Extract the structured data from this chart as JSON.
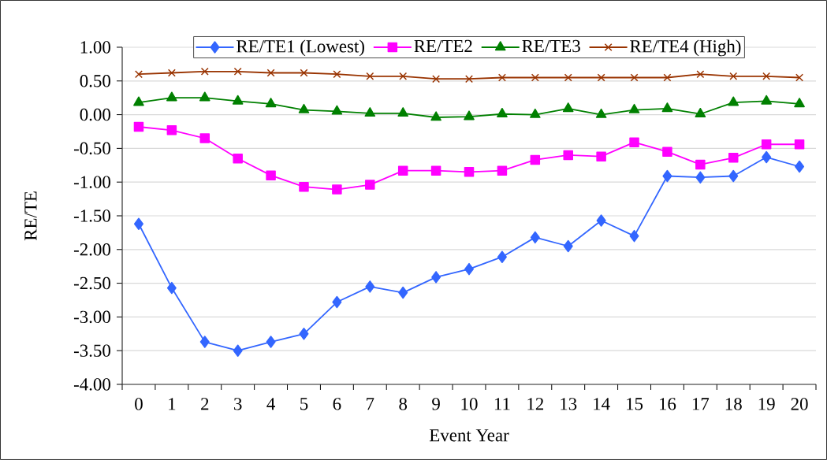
{
  "chart_data": {
    "type": "line",
    "xlabel": "Event Year",
    "ylabel": "RE/TE",
    "categories": [
      "0",
      "1",
      "2",
      "3",
      "4",
      "5",
      "6",
      "7",
      "8",
      "9",
      "10",
      "11",
      "12",
      "13",
      "14",
      "15",
      "16",
      "17",
      "18",
      "19",
      "20"
    ],
    "ylim": [
      -4.0,
      1.0
    ],
    "yticks": [
      {
        "value": 1.0,
        "label": "1.00"
      },
      {
        "value": 0.5,
        "label": "0.50"
      },
      {
        "value": 0.0,
        "label": "0.00"
      },
      {
        "value": -0.5,
        "label": "-0.50"
      },
      {
        "value": -1.0,
        "label": "-1.00"
      },
      {
        "value": -1.5,
        "label": "-1.50"
      },
      {
        "value": -2.0,
        "label": "-2.00"
      },
      {
        "value": -2.5,
        "label": "-2.50"
      },
      {
        "value": -3.0,
        "label": "-3.00"
      },
      {
        "value": -3.5,
        "label": "-3.50"
      },
      {
        "value": -4.0,
        "label": "-4.00"
      }
    ],
    "grid": "y",
    "legend": "top",
    "line_style": "solid",
    "series": [
      {
        "name": "RE/TE1 (Lowest)",
        "color": "#3366ff",
        "marker": "diamond",
        "values": [
          -1.62,
          -2.57,
          -3.37,
          -3.5,
          -3.37,
          -3.25,
          -2.78,
          -2.55,
          -2.64,
          -2.41,
          -2.29,
          -2.11,
          -1.82,
          -1.95,
          -1.57,
          -1.8,
          -0.91,
          -0.93,
          -0.91,
          -0.63,
          -0.77
        ]
      },
      {
        "name": "RE/TE2",
        "color": "#ff00ff",
        "marker": "square",
        "values": [
          -0.18,
          -0.23,
          -0.35,
          -0.65,
          -0.9,
          -1.07,
          -1.11,
          -1.04,
          -0.83,
          -0.83,
          -0.85,
          -0.83,
          -0.67,
          -0.6,
          -0.62,
          -0.41,
          -0.55,
          -0.74,
          -0.64,
          -0.44,
          -0.44
        ]
      },
      {
        "name": "RE/TE3",
        "color": "#008000",
        "marker": "triangle",
        "values": [
          0.18,
          0.25,
          0.25,
          0.2,
          0.16,
          0.07,
          0.05,
          0.02,
          0.02,
          -0.04,
          -0.03,
          0.01,
          0.0,
          0.09,
          0.0,
          0.07,
          0.09,
          0.01,
          0.18,
          0.2,
          0.16
        ]
      },
      {
        "name": "RE/TE4 (High)",
        "color": "#993300",
        "marker": "cross",
        "values": [
          0.6,
          0.62,
          0.64,
          0.64,
          0.62,
          0.62,
          0.6,
          0.57,
          0.57,
          0.53,
          0.53,
          0.55,
          0.55,
          0.55,
          0.55,
          0.55,
          0.55,
          0.6,
          0.57,
          0.57,
          0.55
        ]
      }
    ]
  }
}
